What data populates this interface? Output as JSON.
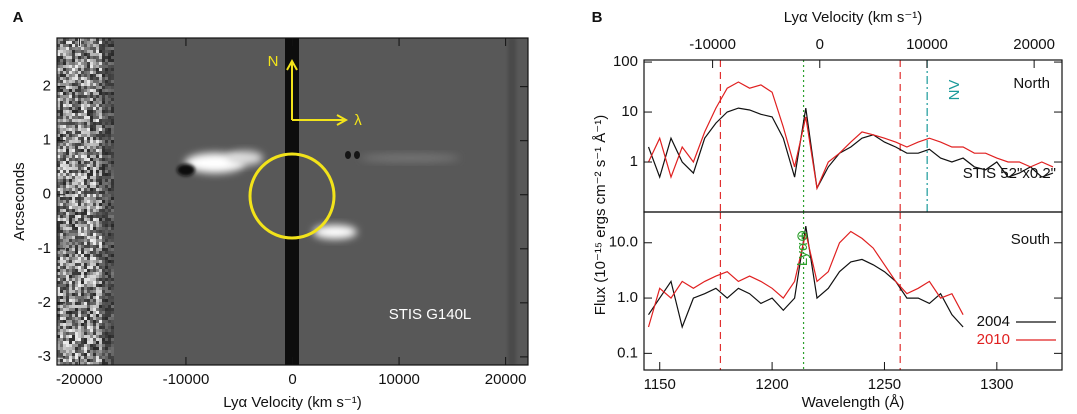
{
  "chart_data": [
    {
      "type": "image",
      "panel_label": "A",
      "xlabel": "Lyα Velocity (km s⁻¹)",
      "ylabel": "Arcseconds",
      "xlim": [
        -22100,
        22100
      ],
      "xticks": [
        -20000,
        -10000,
        0,
        10000,
        20000
      ],
      "ylim": [
        -3.15,
        2.9
      ],
      "yticks": [
        -3,
        -2,
        -1,
        0,
        1,
        2
      ],
      "north_arrow": "N",
      "dispersion_arrow": "λ",
      "instrument": "STIS G140L"
    },
    {
      "type": "line",
      "panel_label": "B",
      "log_y": true,
      "x2label": "Lyα Velocity (km s⁻¹)",
      "x2lim": [
        -16400,
        22600
      ],
      "x2ticks": [
        -10000,
        0,
        10000,
        20000
      ],
      "ylabel": "Flux (10⁻¹⁵ ergs cm⁻² s⁻¹ Å⁻¹)",
      "xlim": [
        1143,
        1329
      ],
      "ylim": [
        0.1,
        110
      ],
      "yticks": [
        1,
        10,
        100
      ],
      "region": "North",
      "instrument": "STIS 52\"x0.2\"",
      "ion_label": "NV",
      "vlines": [
        {
          "x": 1177,
          "color": "#e03030",
          "style": "dashed"
        },
        {
          "x": 1214,
          "color": "#2ca02c",
          "style": "dotted"
        },
        {
          "x": 1257,
          "color": "#e03030",
          "style": "dashed"
        },
        {
          "x": 1269,
          "color": "#1a9a9a",
          "style": "dashdot"
        }
      ],
      "x": [
        1145,
        1150,
        1155,
        1160,
        1165,
        1170,
        1175,
        1180,
        1185,
        1190,
        1195,
        1200,
        1205,
        1210,
        1215,
        1220,
        1225,
        1230,
        1235,
        1240,
        1245,
        1250,
        1255,
        1260,
        1265,
        1270,
        1275,
        1280,
        1285,
        1290,
        1295,
        1300,
        1305,
        1310,
        1315,
        1320,
        1325
      ],
      "series": [
        {
          "name": "2004",
          "color": "#111111",
          "values": [
            2,
            0.5,
            3,
            1,
            0.6,
            3,
            6,
            10,
            12,
            11,
            9,
            8,
            3,
            0.5,
            12,
            0.3,
            0.8,
            1.5,
            2,
            3,
            3.5,
            2.5,
            2,
            1.5,
            1.5,
            1.8,
            1.2,
            1,
            1.2,
            0.8,
            0.7,
            1,
            0.5,
            0.6,
            0.8,
            0.5,
            0.6
          ]
        },
        {
          "name": "2010",
          "color": "#e02020",
          "values": [
            1,
            3,
            0.5,
            2,
            1,
            4,
            12,
            30,
            40,
            30,
            35,
            25,
            5,
            0.8,
            8,
            0.3,
            1,
            1.5,
            2.5,
            4,
            3.5,
            3,
            2.5,
            2,
            2.5,
            3,
            2.5,
            2,
            2,
            1.5,
            1.5,
            1.2,
            1,
            1,
            0.8,
            1,
            0.8
          ]
        }
      ]
    },
    {
      "type": "line",
      "log_y": true,
      "xlabel": "Wavelength (Å)",
      "xlim": [
        1143,
        1329
      ],
      "xticks": [
        1150,
        1200,
        1250,
        1300
      ],
      "ylim": [
        0.05,
        36
      ],
      "yticks": [
        0.1,
        {
          "value": 1,
          "label": "1.0"
        },
        {
          "value": 10,
          "label": "10.0"
        }
      ],
      "region": "South",
      "geo_label": "Lyα⊕",
      "legend": "lower right",
      "vlines": [
        {
          "x": 1177,
          "color": "#e03030",
          "style": "dashed"
        },
        {
          "x": 1214,
          "color": "#2ca02c",
          "style": "dotted"
        },
        {
          "x": 1257,
          "color": "#e03030",
          "style": "dashed"
        }
      ],
      "x": [
        1145,
        1150,
        1155,
        1160,
        1165,
        1170,
        1175,
        1180,
        1185,
        1190,
        1195,
        1200,
        1205,
        1210,
        1215,
        1220,
        1225,
        1230,
        1235,
        1240,
        1245,
        1250,
        1255,
        1260,
        1265,
        1270,
        1275,
        1280,
        1285,
        1290,
        1295,
        1300,
        1305,
        1310,
        1315,
        1320,
        1325
      ],
      "series": [
        {
          "name": "2004",
          "color": "#111111",
          "values": [
            0.5,
            1,
            2,
            0.3,
            1,
            1.2,
            1.5,
            1,
            1.5,
            1.2,
            0.8,
            1,
            0.6,
            1,
            20,
            1,
            1.5,
            3,
            4.5,
            5,
            4,
            3,
            2,
            1,
            1,
            0.8,
            1.2,
            0.5,
            0.3,
            null,
            null,
            null,
            null,
            null,
            null,
            null,
            null
          ]
        },
        {
          "name": "2010",
          "color": "#e02020",
          "values": [
            0.3,
            1.5,
            1,
            2,
            1.5,
            2,
            2.5,
            3,
            2,
            2.5,
            2,
            1.5,
            1,
            2,
            15,
            2,
            3,
            10,
            16,
            12,
            8,
            4,
            2,
            1.2,
            1.5,
            2,
            1,
            1.2,
            0.5,
            null,
            null,
            null,
            null,
            null,
            null,
            null,
            null
          ]
        }
      ]
    }
  ]
}
